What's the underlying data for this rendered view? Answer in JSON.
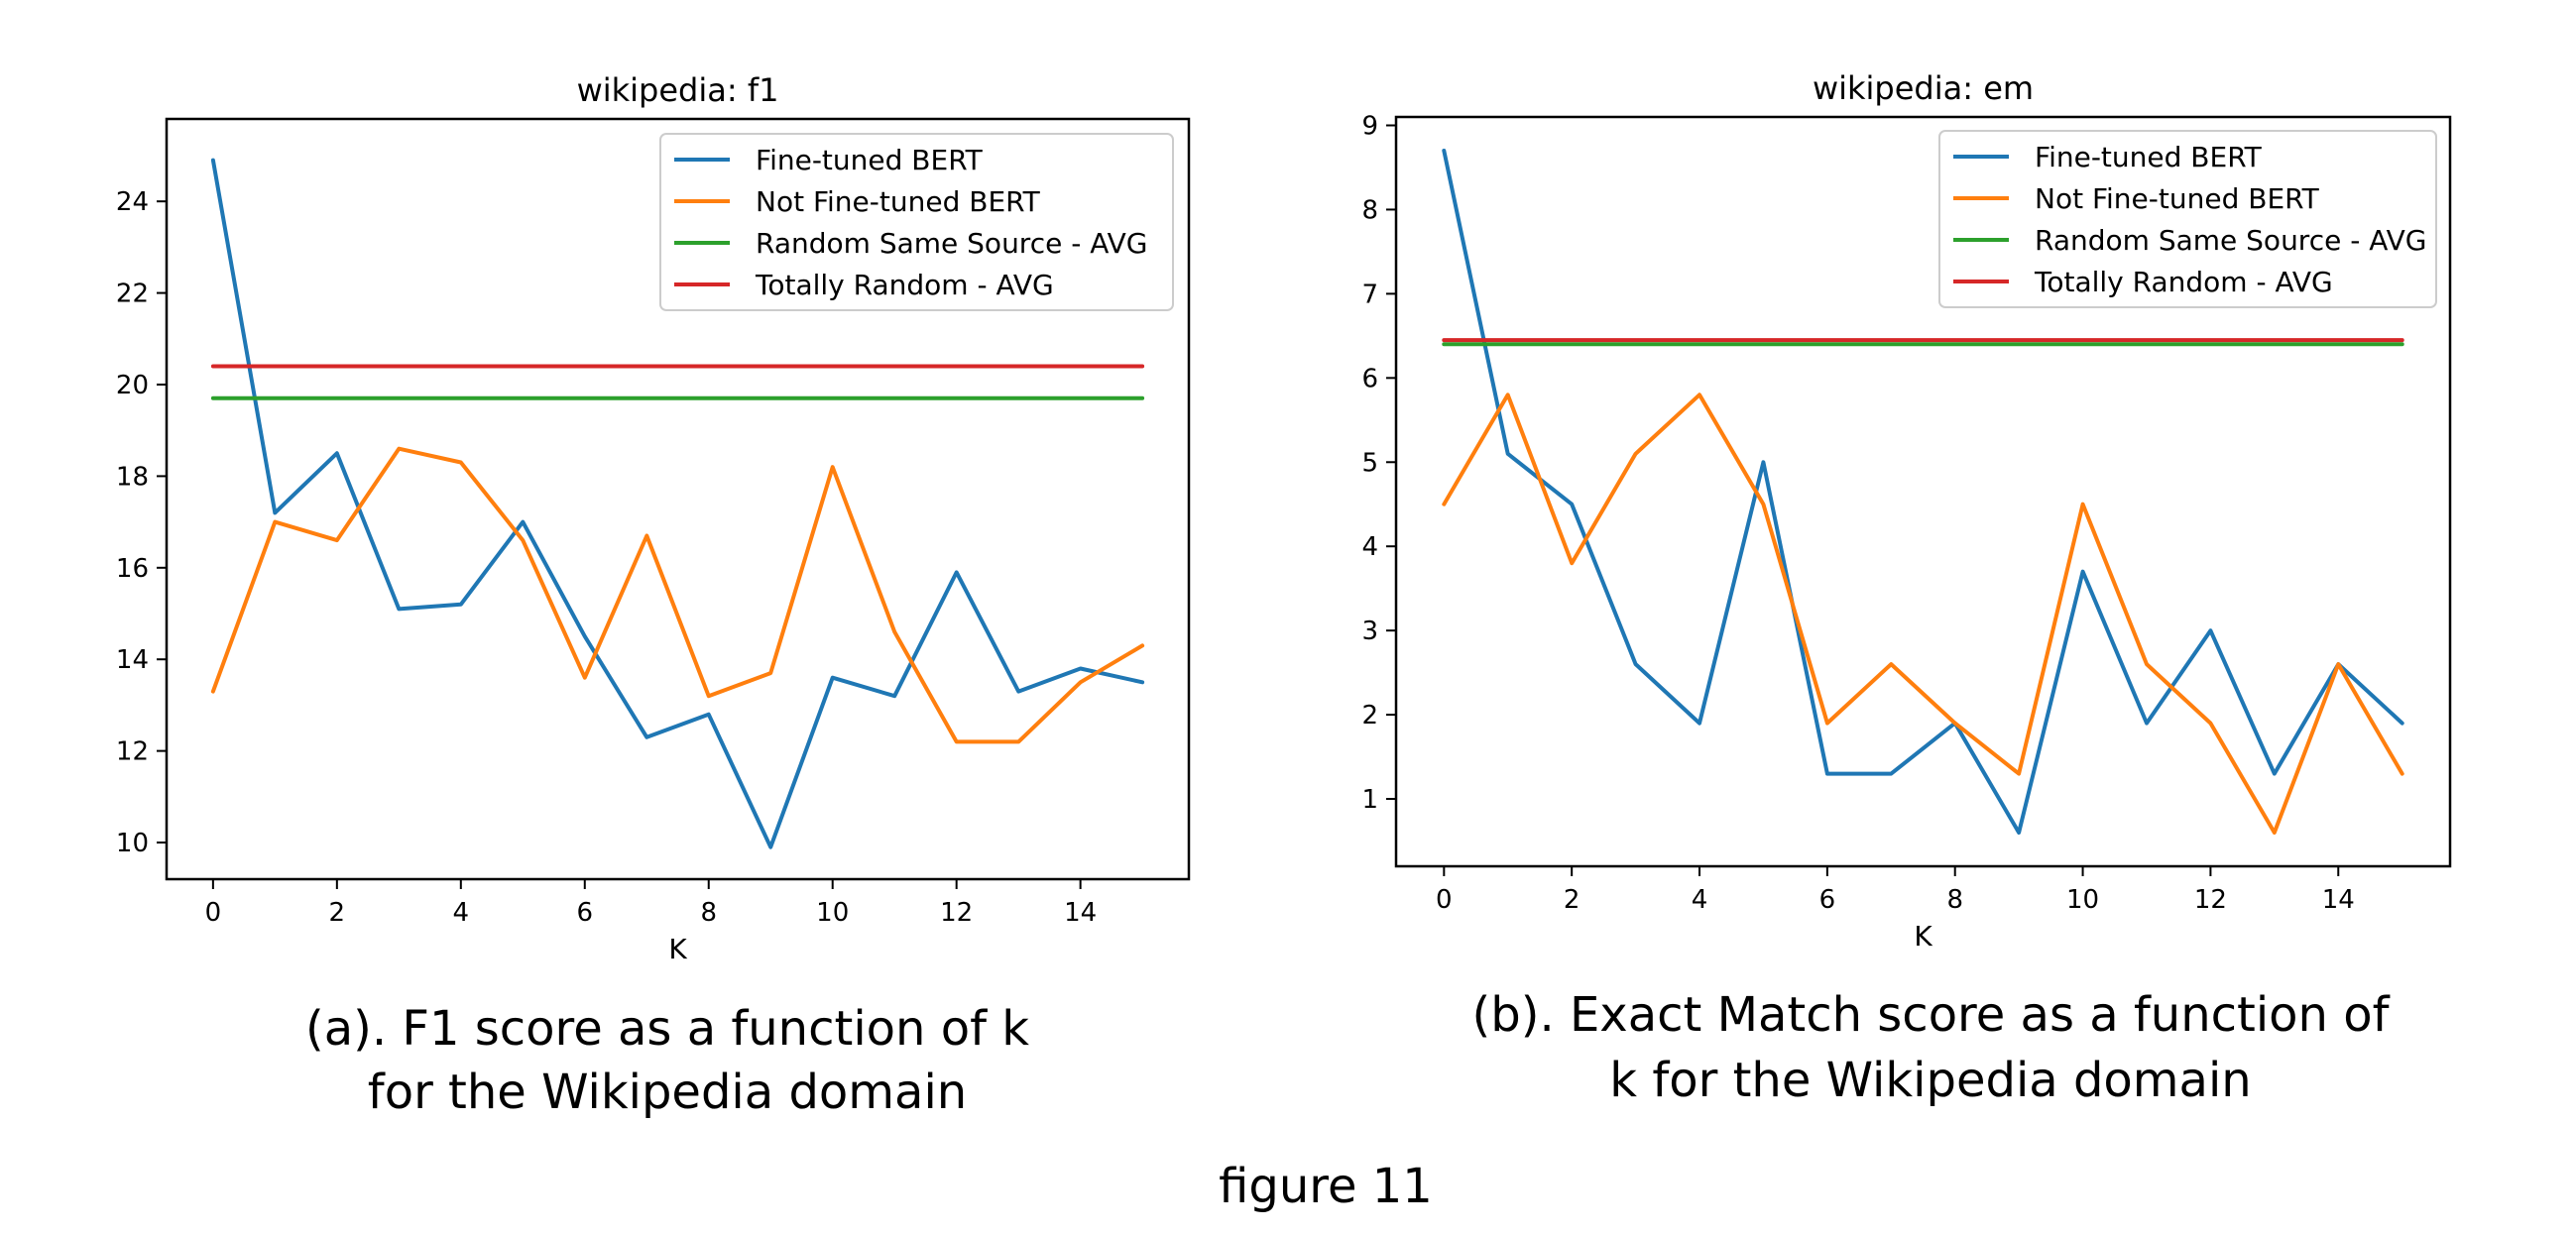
{
  "figure": {
    "caption_a_line1": "(a). F1 score as a function of k",
    "caption_a_line2": "for the Wikipedia domain",
    "caption_b_line1": "(b). Exact Match score as a function of",
    "caption_b_line2": "k for the Wikipedia domain",
    "label": "figure 11"
  },
  "colors": {
    "fine_tuned": "#1f77b4",
    "not_fine_tuned": "#ff7f0e",
    "random_same_source": "#2ca02c",
    "totally_random": "#d62728"
  },
  "chart_data": [
    {
      "type": "line",
      "title": "wikipedia: f1",
      "xlabel": "K",
      "ylabel": "",
      "xlim": [
        -0.75,
        15.75
      ],
      "ylim": [
        9.2,
        25.8
      ],
      "xticks": [
        0,
        2,
        4,
        6,
        8,
        10,
        12,
        14
      ],
      "yticks": [
        10,
        12,
        14,
        16,
        18,
        20,
        22,
        24
      ],
      "grid": false,
      "legend_position": "top-right",
      "x": [
        0,
        1,
        2,
        3,
        4,
        5,
        6,
        7,
        8,
        9,
        10,
        11,
        12,
        13,
        14,
        15
      ],
      "series": [
        {
          "name": "Fine-tuned BERT",
          "color": "#1f77b4",
          "values": [
            24.9,
            17.2,
            18.5,
            15.1,
            15.2,
            17.0,
            14.5,
            12.3,
            12.8,
            9.9,
            13.6,
            13.2,
            15.9,
            13.3,
            13.8,
            13.5
          ]
        },
        {
          "name": "Not Fine-tuned BERT",
          "color": "#ff7f0e",
          "values": [
            13.3,
            17.0,
            16.6,
            18.6,
            18.3,
            16.6,
            13.6,
            16.7,
            13.2,
            13.7,
            18.2,
            14.6,
            12.2,
            12.2,
            13.5,
            14.3
          ]
        },
        {
          "name": "Random Same Source - AVG",
          "color": "#2ca02c",
          "values": [
            19.7,
            19.7,
            19.7,
            19.7,
            19.7,
            19.7,
            19.7,
            19.7,
            19.7,
            19.7,
            19.7,
            19.7,
            19.7,
            19.7,
            19.7,
            19.7
          ]
        },
        {
          "name": "Totally Random - AVG",
          "color": "#d62728",
          "values": [
            20.4,
            20.4,
            20.4,
            20.4,
            20.4,
            20.4,
            20.4,
            20.4,
            20.4,
            20.4,
            20.4,
            20.4,
            20.4,
            20.4,
            20.4,
            20.4
          ]
        }
      ]
    },
    {
      "type": "line",
      "title": "wikipedia: em",
      "xlabel": "K",
      "ylabel": "",
      "xlim": [
        -0.75,
        15.75
      ],
      "ylim": [
        0.2,
        9.1
      ],
      "xticks": [
        0,
        2,
        4,
        6,
        8,
        10,
        12,
        14
      ],
      "yticks": [
        1,
        2,
        3,
        4,
        5,
        6,
        7,
        8,
        9
      ],
      "grid": false,
      "legend_position": "top-right",
      "x": [
        0,
        1,
        2,
        3,
        4,
        5,
        6,
        7,
        8,
        9,
        10,
        11,
        12,
        13,
        14,
        15
      ],
      "series": [
        {
          "name": "Fine-tuned BERT",
          "color": "#1f77b4",
          "values": [
            8.7,
            5.1,
            4.5,
            2.6,
            1.9,
            5.0,
            1.3,
            1.3,
            1.9,
            0.6,
            3.7,
            1.9,
            3.0,
            1.3,
            2.6,
            1.9
          ]
        },
        {
          "name": "Not Fine-tuned BERT",
          "color": "#ff7f0e",
          "values": [
            4.5,
            5.8,
            3.8,
            5.1,
            5.8,
            4.5,
            1.9,
            2.6,
            1.9,
            1.3,
            4.5,
            2.6,
            1.9,
            0.6,
            2.6,
            1.3
          ]
        },
        {
          "name": "Random Same Source - AVG",
          "color": "#2ca02c",
          "values": [
            6.4,
            6.4,
            6.4,
            6.4,
            6.4,
            6.4,
            6.4,
            6.4,
            6.4,
            6.4,
            6.4,
            6.4,
            6.4,
            6.4,
            6.4,
            6.4
          ]
        },
        {
          "name": "Totally Random - AVG",
          "color": "#d62728",
          "values": [
            6.45,
            6.45,
            6.45,
            6.45,
            6.45,
            6.45,
            6.45,
            6.45,
            6.45,
            6.45,
            6.45,
            6.45,
            6.45,
            6.45,
            6.45,
            6.45
          ]
        }
      ]
    }
  ]
}
